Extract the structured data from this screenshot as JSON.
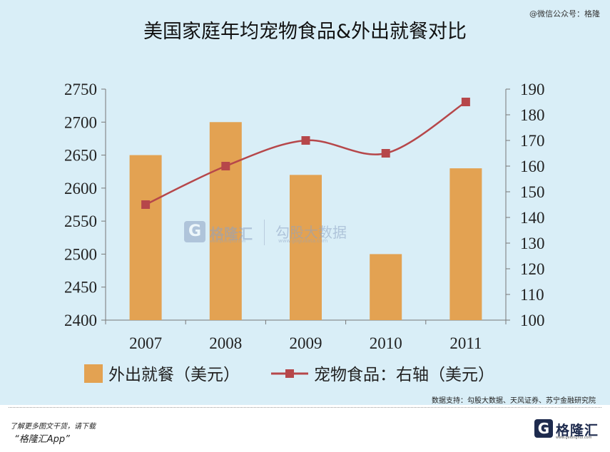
{
  "header": {
    "title": "美国家庭年均宠物食品&外出就餐对比",
    "account_watermark": "@微信公众号：格隆"
  },
  "watermark": {
    "brand_cn": "格隆汇",
    "brand_url": "www.gelonghui.com",
    "partner_cn": "勾股大数据",
    "partner_url": "www.gogudata.com"
  },
  "source_note": "数据支持：勾股大数据、天风证券、苏宁金融研究院",
  "footer": {
    "line1": "了解更多图文干货，请下载",
    "line2": "“格隆汇App”",
    "logo_text": "格隆汇",
    "logo_sub": "www.gelonghui.com"
  },
  "chart_data": {
    "type": "bar",
    "categories": [
      "2007",
      "2008",
      "2009",
      "2010",
      "2011"
    ],
    "series": [
      {
        "name": "外出就餐（美元）",
        "type": "bar",
        "axis": "left",
        "values": [
          2650,
          2700,
          2620,
          2500,
          2630
        ],
        "color": "#e3a252"
      },
      {
        "name": "宠物食品：右轴（美元）",
        "type": "line",
        "axis": "right",
        "values": [
          145,
          160,
          170,
          165,
          185
        ],
        "color": "#b6474a"
      }
    ],
    "y_left": {
      "min": 2400,
      "max": 2750,
      "ticks": [
        "2400",
        "2450",
        "2500",
        "2550",
        "2600",
        "2650",
        "2700",
        "2750"
      ]
    },
    "y_right": {
      "min": 100,
      "max": 190,
      "ticks": [
        "100",
        "110",
        "120",
        "130",
        "140",
        "150",
        "160",
        "170",
        "180",
        "190"
      ]
    },
    "grid": false,
    "legend_position": "bottom"
  }
}
